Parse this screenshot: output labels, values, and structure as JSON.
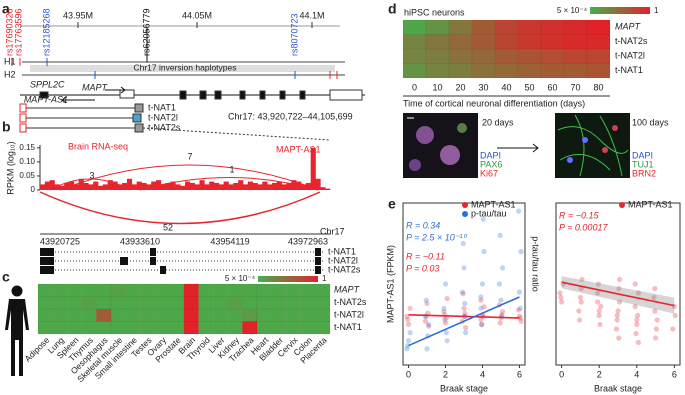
{
  "panel_a": {
    "label": "a",
    "snps": [
      "rs17690326",
      "rs17763596",
      "rs12185268",
      "rs62056779",
      "rs8070723"
    ],
    "coords": [
      "43.95M",
      "44.05M",
      "44.1M"
    ],
    "haplotypes": [
      "H1",
      "H2"
    ],
    "inversion_label": "Chr17 inversion haplotypes",
    "genes": [
      "SPPL2C",
      "MAPT",
      "MAPT-AS1"
    ],
    "transcripts": [
      "t-NAT1",
      "t-NAT2l",
      "t-NAT2s"
    ],
    "region": "Chr17: 43,920,722–44,105,699"
  },
  "panel_b": {
    "label": "b",
    "y_title": "RPKM (log₁₀)",
    "track_label": "Brain RNA-seq",
    "gene_label": "MAPT-AS1",
    "junctions": [
      3,
      7,
      1,
      52
    ],
    "positions": [
      43920725,
      43933610,
      43954119,
      43972963
    ],
    "chrom": "Chr17",
    "transcripts": [
      "t-NAT1",
      "t-NAT2l",
      "t-NAT2s"
    ],
    "ylim": [
      0,
      0.16
    ],
    "yticks": [
      0,
      {
        "value": 0.05,
        "label": "0.05"
      },
      {
        "value": 0.1,
        "label": "0.10"
      },
      {
        "value": 0.15,
        "label": "0.15"
      }
    ],
    "coverage": [
      0.02,
      0.03,
      0.035,
      0.02,
      0.015,
      0.025,
      0.03,
      0.02,
      0.04,
      0.025,
      0.02,
      0.03,
      0.015,
      0.02,
      0.035,
      0.03,
      0.02,
      0.025,
      0.04,
      0.02,
      0.03,
      0.025,
      0.02,
      0.03,
      0.035,
      0.02,
      0.025,
      0.03,
      0.02,
      0.015,
      0.03,
      0.025,
      0.02,
      0.035,
      0.02,
      0.03,
      0.025,
      0.02,
      0.03,
      0.02,
      0.025,
      0.035,
      0.02,
      0.03,
      0.025,
      0.02,
      0.03,
      0.02,
      0.025,
      0.03,
      0.02,
      0.025,
      0.035,
      0.03,
      0.02,
      0.025,
      0.15,
      0.04,
      0.01,
      0.005
    ]
  },
  "panel_c": {
    "label": "c",
    "colorbar": {
      "min_label": "5 × 10⁻⁴",
      "max_label": "1"
    },
    "rows": [
      "MAPT",
      "t-NAT2s",
      "t-NAT2l",
      "t-NAT1"
    ],
    "tissues": [
      "Adipose",
      "Lung",
      "Spleen",
      "Thymus",
      "Oesophagus",
      "Skeletal muscle",
      "Small intestine",
      "Testes",
      "Ovary",
      "Prostate",
      "Brain",
      "Thyroid",
      "Liver",
      "Kidney",
      "Trachea",
      "Heart",
      "Bladder",
      "Cervix",
      "Colon",
      "Placenta"
    ],
    "values": [
      [
        0.05,
        0.05,
        0.05,
        0.05,
        0.05,
        0.1,
        0.05,
        0.05,
        0.05,
        0.05,
        1,
        0.05,
        0.05,
        0.05,
        0.05,
        0.05,
        0.05,
        0.05,
        0.05,
        0.05
      ],
      [
        0.05,
        0.05,
        0.05,
        0.1,
        0.05,
        0.05,
        0.05,
        0.05,
        0.05,
        0.05,
        1,
        0.05,
        0.05,
        0.1,
        0.05,
        0.05,
        0.05,
        0.05,
        0.05,
        0.05
      ],
      [
        0.05,
        0.05,
        0.05,
        0.05,
        0.6,
        0.05,
        0.05,
        0.05,
        0.05,
        0.05,
        1,
        0.05,
        0.05,
        0.05,
        0.15,
        0.05,
        0.05,
        0.05,
        0.05,
        0.05
      ],
      [
        0.05,
        0.05,
        0.05,
        0.05,
        0.05,
        0.05,
        0.05,
        0.05,
        0.05,
        0.05,
        1,
        0.05,
        0.05,
        0.05,
        1,
        0.05,
        0.05,
        0.05,
        0.05,
        0.05
      ]
    ]
  },
  "panel_d": {
    "label": "d",
    "title": "hiPSC neurons",
    "colorbar": {
      "min_label": "5 × 10⁻⁴",
      "max_label": "1"
    },
    "rows": [
      "MAPT",
      "t-NAT2s",
      "t-NAT2l",
      "t-NAT1"
    ],
    "days": [
      0,
      10,
      20,
      30,
      40,
      50,
      60,
      70,
      80
    ],
    "x_title": "Time of cortical neuronal differentiation (days)",
    "values": [
      [
        0.05,
        0.2,
        0.4,
        0.6,
        0.75,
        0.85,
        0.9,
        0.95,
        1
      ],
      [
        0.3,
        0.4,
        0.5,
        0.6,
        0.75,
        0.85,
        0.9,
        0.95,
        0.95
      ],
      [
        0.3,
        0.35,
        0.45,
        0.5,
        0.6,
        0.65,
        0.7,
        0.75,
        0.75
      ],
      [
        0.2,
        0.3,
        0.35,
        0.45,
        0.5,
        0.55,
        0.6,
        0.6,
        0.65
      ]
    ],
    "images": [
      {
        "caption": "20 days",
        "stains": [
          "DAPI",
          "PAX6",
          "Ki67"
        ]
      },
      {
        "caption": "100 days",
        "stains": [
          "DAPI",
          "TUJ1",
          "BRN2"
        ]
      }
    ]
  },
  "panel_e": {
    "label": "e",
    "plots": [
      {
        "y_title": "MAPT-AS1 (FPKM)",
        "y2_title": "p-tau/tau ratio",
        "x_title": "Braak stage",
        "xlim": [
          -0.3,
          6.3
        ],
        "xticks": [
          0,
          2,
          4,
          6
        ],
        "ylim": [
          0,
          1
        ],
        "series": [
          {
            "name": "MAPT-AS1",
            "color": "#e8242f",
            "stats": [
              "R = −0.11",
              "P = 0.03"
            ],
            "fit": {
              "x": [
                0,
                6
              ],
              "y": [
                0.31,
                0.29
              ]
            },
            "x": [
              0,
              0,
              0,
              0,
              1,
              1,
              1,
              1,
              1,
              2,
              2,
              2,
              2,
              2,
              3,
              3,
              3,
              3,
              3,
              3,
              4,
              4,
              4,
              4,
              4,
              4,
              5,
              5,
              5,
              5,
              5,
              6,
              6,
              6,
              6
            ],
            "y": [
              0.3,
              0.25,
              0.35,
              0.28,
              0.32,
              0.27,
              0.38,
              0.24,
              0.3,
              0.29,
              0.33,
              0.26,
              0.41,
              0.31,
              0.3,
              0.27,
              0.35,
              0.23,
              0.44,
              0.32,
              0.28,
              0.31,
              0.36,
              0.25,
              0.3,
              0.4,
              0.29,
              0.33,
              0.26,
              0.31,
              0.37,
              0.3,
              0.27,
              0.34,
              0.29
            ]
          },
          {
            "name": "p-tau/tau",
            "color": "#2b6fd6",
            "axis": "y2",
            "stats": [
              "R = 0.34",
              "P = 2.5 × 10⁻¹⁰"
            ],
            "fit": {
              "x": [
                0,
                6
              ],
              "y": [
                0.12,
                0.42
              ]
            },
            "x": [
              0,
              0,
              0,
              0,
              1,
              1,
              1,
              1,
              1,
              2,
              2,
              2,
              2,
              2,
              3,
              3,
              3,
              3,
              3,
              3,
              4,
              4,
              4,
              4,
              4,
              4,
              5,
              5,
              5,
              5,
              5,
              6,
              6,
              6,
              6
            ],
            "y": [
              0.1,
              0.15,
              0.2,
              0.12,
              0.18,
              0.3,
              0.1,
              0.25,
              0.4,
              0.2,
              0.35,
              0.5,
              0.15,
              0.28,
              0.3,
              0.45,
              0.6,
              0.2,
              0.75,
              0.38,
              0.35,
              0.5,
              0.7,
              0.25,
              0.9,
              0.42,
              0.4,
              0.6,
              0.8,
              0.3,
              0.5,
              0.45,
              0.7,
              0.95,
              0.35
            ]
          }
        ]
      },
      {
        "x_title": "Braak stage",
        "xlim": [
          -0.3,
          6.3
        ],
        "xticks": [
          0,
          2,
          4,
          6
        ],
        "ylim": [
          0,
          1.8
        ],
        "series": [
          {
            "name": "MAPT-AS1",
            "color": "#e8242f",
            "stats": [
              "R = −0.15",
              "P = 0.00017"
            ],
            "fit": {
              "x": [
                0,
                6
              ],
              "y": [
                0.92,
                0.66
              ]
            },
            "x": [
              0,
              0,
              0,
              0,
              1,
              1,
              1,
              1,
              1,
              1,
              2,
              2,
              2,
              2,
              2,
              2,
              2,
              3,
              3,
              3,
              3,
              3,
              3,
              3,
              3,
              4,
              4,
              4,
              4,
              4,
              4,
              4,
              4,
              5,
              5,
              5,
              5,
              5,
              5,
              6,
              6,
              6
            ],
            "y": [
              0.8,
              0.7,
              0.9,
              0.75,
              0.85,
              0.6,
              0.75,
              0.95,
              0.5,
              0.7,
              0.8,
              0.55,
              0.65,
              0.9,
              0.45,
              0.7,
              0.6,
              0.7,
              0.5,
              0.85,
              0.4,
              0.6,
              0.95,
              0.55,
              0.3,
              0.65,
              0.45,
              0.8,
              0.35,
              0.55,
              0.9,
              0.5,
              0.25,
              0.6,
              0.4,
              0.75,
              0.3,
              0.5,
              0.85,
              0.55,
              0.4,
              0.65
            ]
          }
        ]
      }
    ]
  }
}
